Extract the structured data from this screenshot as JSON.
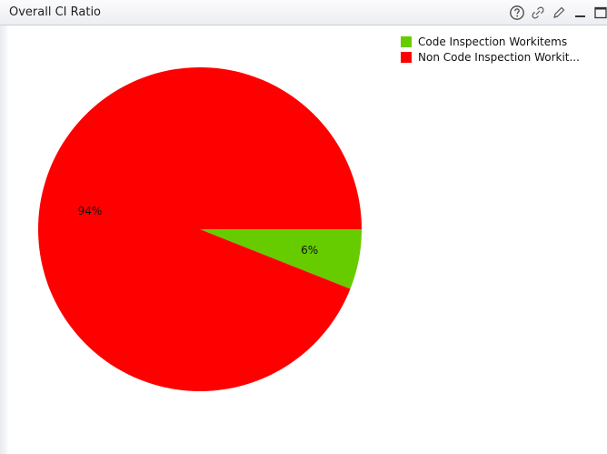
{
  "window": {
    "title": "Overall CI Ratio"
  },
  "toolbar": {
    "icons": [
      "help-icon",
      "link-icon",
      "edit-icon",
      "minimize-icon",
      "maximize-icon"
    ]
  },
  "legend": {
    "items": [
      {
        "label": "Code Inspection Workitems",
        "color": "#66cc00"
      },
      {
        "label": "Non Code Inspection Workit...",
        "color": "#ff0000"
      }
    ]
  },
  "chart_data": {
    "type": "pie",
    "title": "",
    "categories": [
      "Code Inspection Workitems",
      "Non Code Inspection Workitems"
    ],
    "values": [
      6,
      94
    ],
    "labels": [
      "6%",
      "94%"
    ],
    "colors": [
      "#66cc00",
      "#ff0000"
    ],
    "legend_position": "top-right"
  }
}
